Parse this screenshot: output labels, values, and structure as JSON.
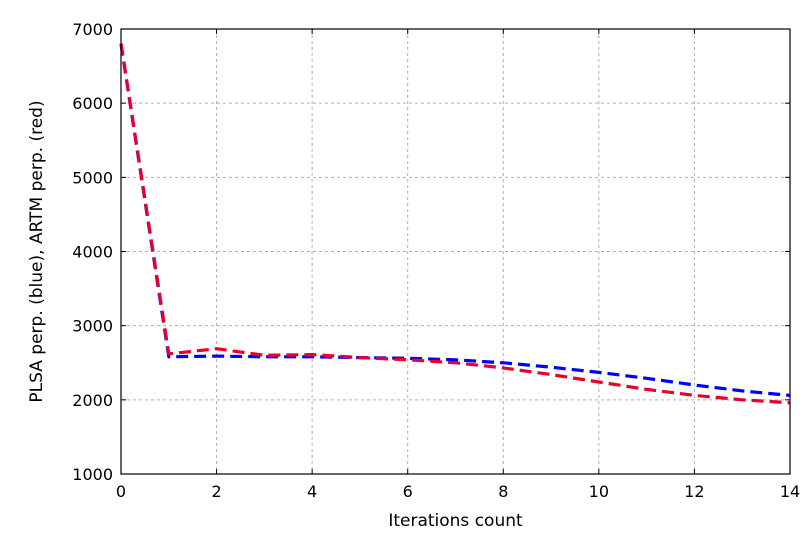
{
  "chart_data": {
    "type": "line",
    "title": "",
    "xlabel": "Iterations count",
    "ylabel": "PLSA perp. (blue), ARTM perp. (red)",
    "xlim": [
      0,
      14
    ],
    "ylim": [
      1000,
      7000
    ],
    "xticks": [
      0,
      2,
      4,
      6,
      8,
      10,
      12,
      14
    ],
    "yticks": [
      1000,
      2000,
      3000,
      4000,
      5000,
      6000,
      7000
    ],
    "grid": true,
    "x": [
      0,
      1,
      2,
      3,
      4,
      5,
      6,
      7,
      8,
      9,
      10,
      11,
      12,
      13,
      14
    ],
    "series": [
      {
        "color": "#0000ff",
        "values": [
          6800,
          2580,
          2590,
          2580,
          2580,
          2570,
          2560,
          2540,
          2500,
          2440,
          2370,
          2290,
          2200,
          2120,
          2060
        ]
      },
      {
        "color": "#e8002a",
        "values": [
          6800,
          2620,
          2690,
          2600,
          2610,
          2570,
          2540,
          2500,
          2430,
          2340,
          2240,
          2140,
          2060,
          2000,
          1960
        ]
      }
    ]
  }
}
